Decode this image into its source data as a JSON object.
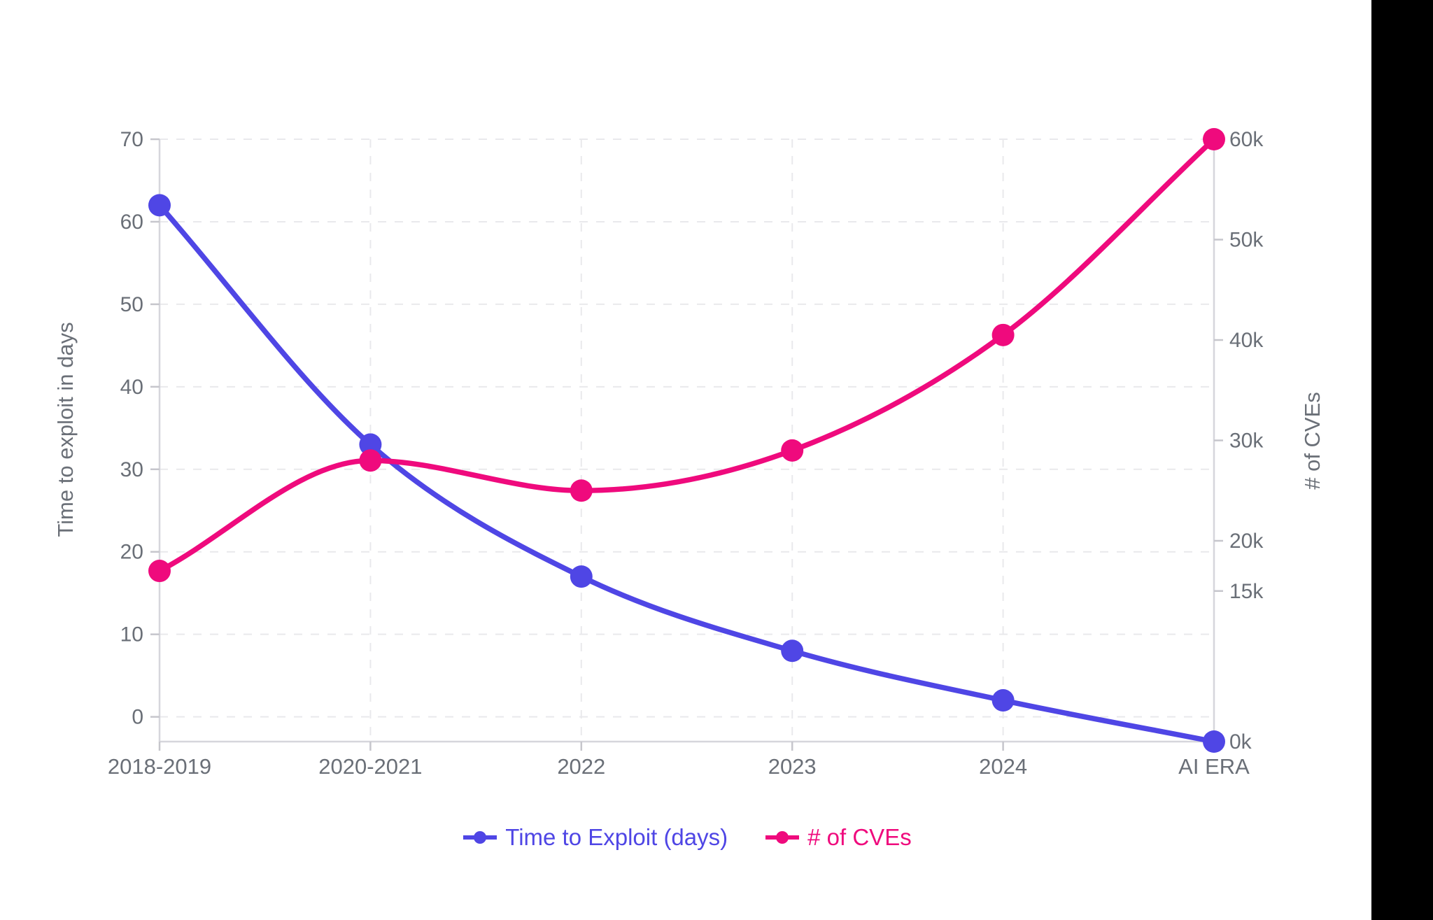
{
  "page": {
    "background": "#ffffff",
    "letterbox_color": "#000000"
  },
  "chart_data": {
    "type": "line",
    "categories": [
      "2018-2019",
      "2020-2021",
      "2022",
      "2023",
      "2024",
      "AI ERA"
    ],
    "series": [
      {
        "name": "Time to Exploit (days)",
        "axis": "left",
        "color": "#4f46e5",
        "values": [
          62,
          33,
          17,
          8,
          2,
          -3
        ]
      },
      {
        "name": "# of CVEs",
        "axis": "right",
        "color": "#ef0a7d",
        "unit": "thousands",
        "values": [
          17,
          28,
          25,
          29,
          40.5,
          60
        ]
      }
    ],
    "left_axis": {
      "label": "Time to exploit in days",
      "ticks": [
        0,
        10,
        20,
        30,
        40,
        50,
        60,
        70
      ],
      "range": [
        -3,
        70
      ]
    },
    "right_axis": {
      "label": "# of CVEs",
      "tick_labels": [
        "0k",
        "15k",
        "20k",
        "30k",
        "40k",
        "50k",
        "60k"
      ],
      "tick_values": [
        0,
        15,
        20,
        30,
        40,
        50,
        60
      ],
      "range": [
        0,
        60
      ]
    },
    "grid": {
      "horizontal": true,
      "vertical": true,
      "style": "dashed"
    },
    "legend": {
      "position": "bottom",
      "items": [
        {
          "label": "Time to Exploit (days)",
          "color": "#4f46e5"
        },
        {
          "label": "# of CVEs",
          "color": "#ef0a7d"
        }
      ]
    },
    "style": {
      "grid_color": "#e9e9ec",
      "axis_line_color": "#d6d6dc",
      "tick_mark_color": "#c6c6cc",
      "tick_text_color": "#6a6f77",
      "axis_title_color": "#6a6f77"
    }
  }
}
